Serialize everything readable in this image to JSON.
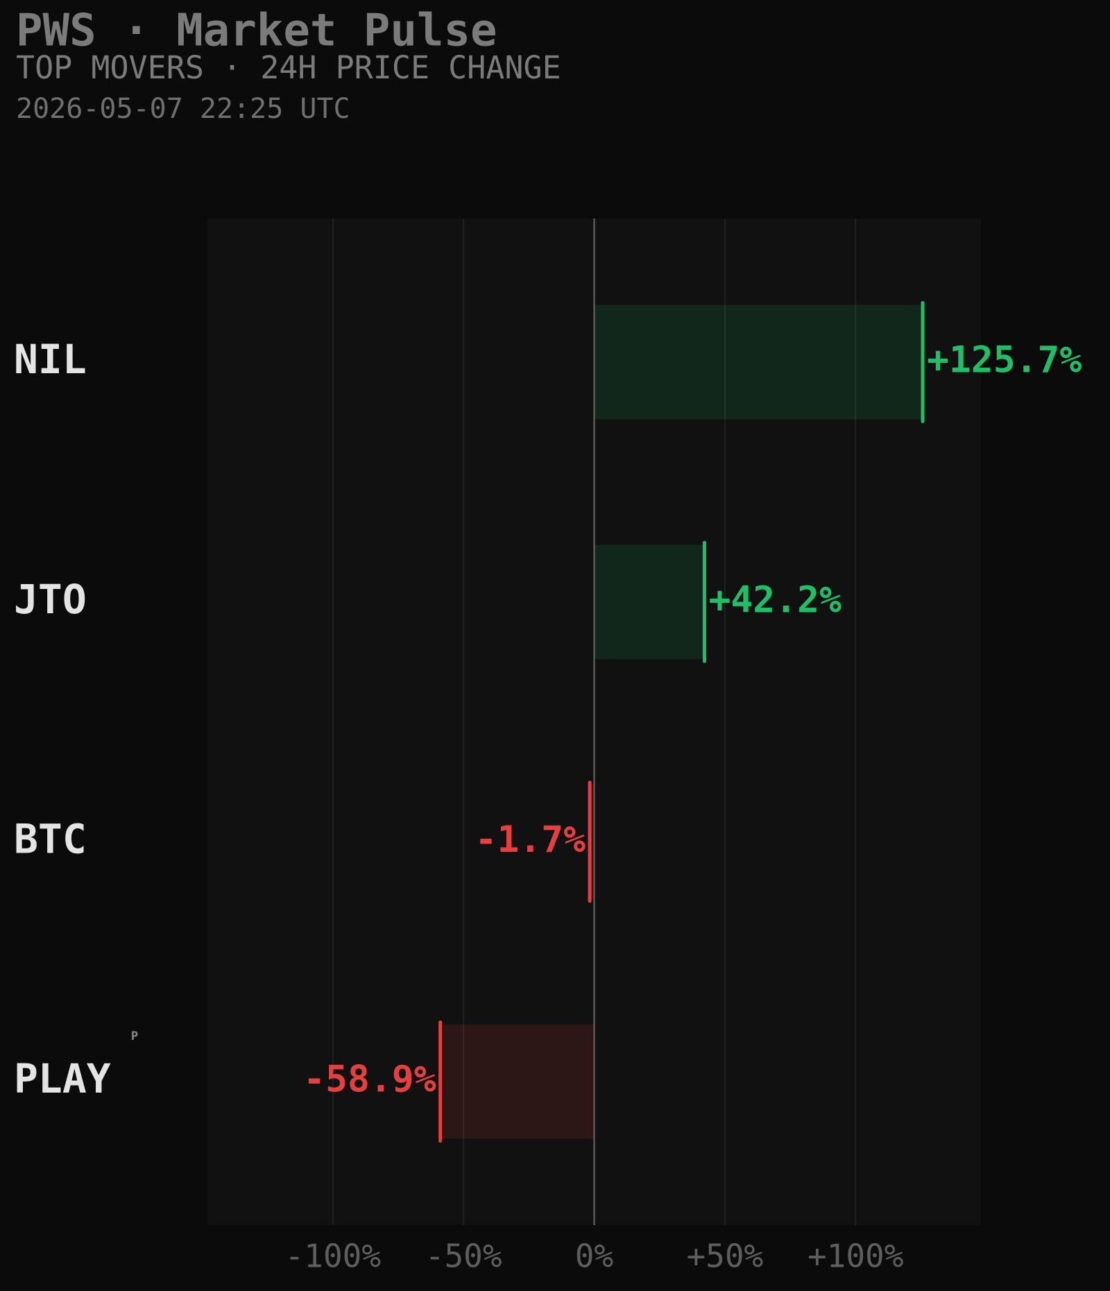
{
  "header": {
    "title": "PWS · Market Pulse",
    "subtitle": "TOP MOVERS · 24H PRICE CHANGE",
    "timestamp": "2026-05-07 22:25 UTC"
  },
  "chart_data": {
    "type": "bar",
    "orientation": "horizontal",
    "categories": [
      "NIL",
      "JTO",
      "BTC",
      "PLAY"
    ],
    "badges": [
      null,
      null,
      null,
      "P"
    ],
    "values": [
      125.7,
      42.2,
      -1.7,
      -58.9
    ],
    "value_labels": [
      "+125.7%",
      "+42.2%",
      "-1.7%",
      "-58.9%"
    ],
    "colors": [
      "#1fbf68",
      "#1fbf68",
      "#e5403f",
      "#e5403f"
    ],
    "xlim": [
      -148,
      148
    ],
    "xticks": [
      {
        "value": -100,
        "label": "-100%"
      },
      {
        "value": -50,
        "label": "-50%"
      },
      {
        "value": 0,
        "label": "0%"
      },
      {
        "value": 50,
        "label": "+50%"
      },
      {
        "value": 100,
        "label": "+100%"
      }
    ],
    "grid": true
  }
}
